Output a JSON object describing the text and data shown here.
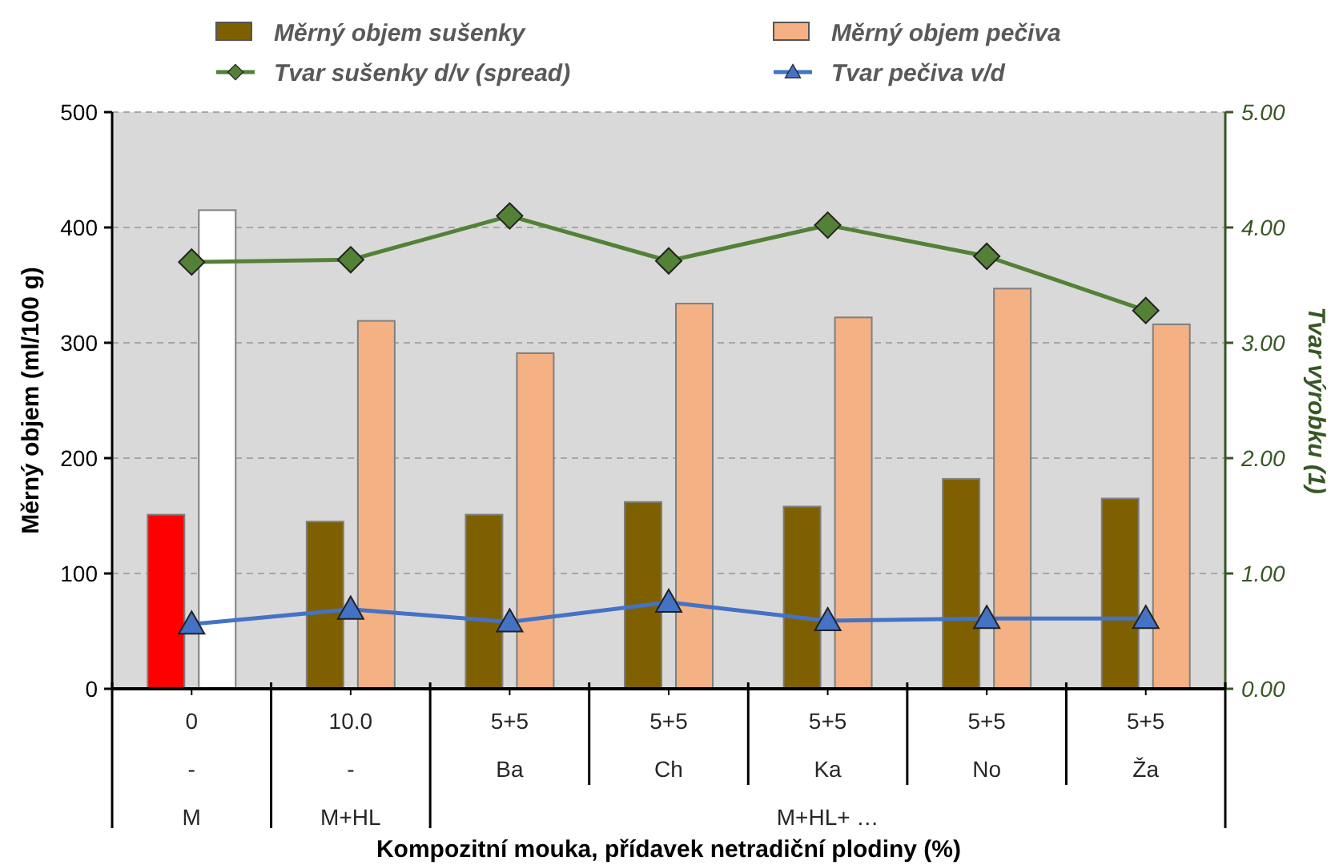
{
  "chart_data": {
    "type": "bar",
    "categories": [
      "0\n-",
      "10.0\n-",
      "5+5\nBa",
      "5+5\nCh",
      "5+5\nKa",
      "5+5\nNo",
      "5+5\nŽa"
    ],
    "series": [
      {
        "name": "Měrný objem sušenky",
        "color": "#7f6000",
        "colors": [
          "#ff0000",
          "#7f6000",
          "#7f6000",
          "#7f6000",
          "#7f6000",
          "#7f6000",
          "#7f6000"
        ],
        "values": [
          151,
          145,
          151,
          162,
          158,
          182,
          165
        ]
      },
      {
        "name": "Měrný objem pečiva",
        "color": "#f4b183",
        "colors": [
          "#ffffff",
          "#f4b183",
          "#f4b183",
          "#f4b183",
          "#f4b183",
          "#f4b183",
          "#f4b183"
        ],
        "values": [
          415,
          319,
          291,
          334,
          322,
          347,
          316
        ]
      },
      {
        "name": "Tvar sušenky d/v (spread)",
        "type": "line",
        "axis": "y2",
        "color": "#538135",
        "marker": "diamond",
        "values": [
          3.7,
          3.72,
          4.1,
          3.71,
          4.02,
          3.75,
          3.28
        ]
      },
      {
        "name": "Tvar pečiva v/d",
        "type": "line",
        "axis": "y2",
        "color": "#4472c4",
        "marker": "triangle",
        "values": [
          0.56,
          0.69,
          0.58,
          0.75,
          0.59,
          0.61,
          0.61
        ]
      }
    ],
    "ylim": [
      0,
      500
    ],
    "yticks": [
      0,
      100,
      200,
      300,
      400,
      500
    ],
    "y2lim": [
      0,
      5
    ],
    "y2ticks": [
      {
        "value": 0,
        "label": "0.00"
      },
      {
        "value": 1,
        "label": "1.00"
      },
      {
        "value": 2,
        "label": "2.00"
      },
      {
        "value": 3,
        "label": "3.00"
      },
      {
        "value": 4,
        "label": "4.00"
      },
      {
        "value": 5,
        "label": "5.00"
      }
    ],
    "ylabel": "Měrný objem (ml/100 g)",
    "y2label": "Tvar výrobku (1)",
    "xlabel": "Kompozitní mouka, přídavek netradiční plodiny (%)",
    "annotations": [
      "M",
      "M+HL",
      "M+HL+ …"
    ],
    "grid": "y",
    "legend": "top",
    "line_style": "solid"
  }
}
